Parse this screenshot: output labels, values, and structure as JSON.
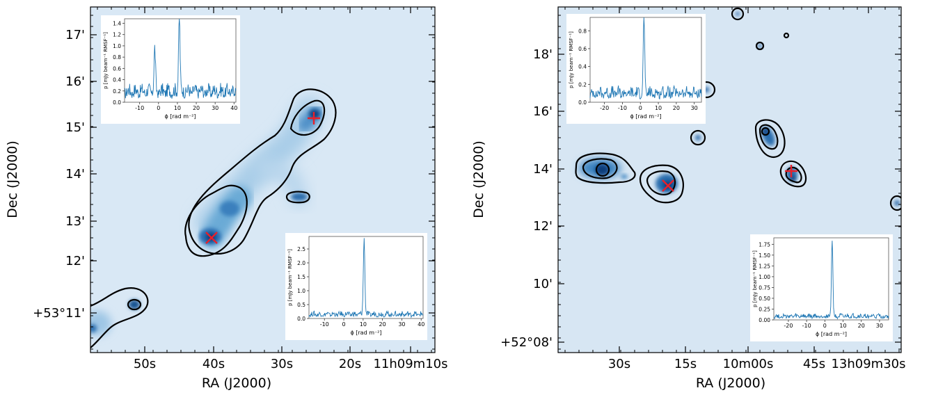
{
  "chart_data": [
    {
      "type": "heatmap",
      "xlabel": "RA (J2000)",
      "ylabel": "Dec (J2000)",
      "x_ticks": [
        "50s",
        "40s",
        "30s",
        "20s",
        "11h09m10s"
      ],
      "y_ticks": [
        "+53°11'",
        "12'",
        "13'",
        "14'",
        "15'",
        "16'",
        "17'"
      ],
      "colormap": "Blues",
      "contour_color": "#000000",
      "markers": [
        {
          "shape": "plus",
          "color": "#e8202a"
        },
        {
          "shape": "cross",
          "color": "#e8202a"
        }
      ],
      "insets": [
        {
          "position": "top-left",
          "type": "line",
          "xlabel": "ϕ [rad m⁻²]",
          "ylabel": "p [mJy beam⁻¹ RMSF⁻¹]",
          "x_ticks": [
            -10,
            0,
            10,
            20,
            30,
            40
          ],
          "y_ticks": [
            0.0,
            0.2,
            0.4,
            0.6,
            0.8,
            1.0,
            1.2,
            1.4
          ],
          "xlim": [
            -18,
            41
          ],
          "ylim": [
            0,
            1.48
          ],
          "peaks": [
            {
              "x": -2,
              "y": 0.75
            },
            {
              "x": 11,
              "y": 1.38
            }
          ],
          "baseline": 0.28,
          "color": "#1f77b4"
        },
        {
          "position": "bottom-right",
          "type": "line",
          "xlabel": "ϕ [rad m⁻²]",
          "ylabel": "p [mJy beam⁻¹ RMSF⁻¹]",
          "x_ticks": [
            -10,
            0,
            10,
            20,
            30,
            40
          ],
          "y_ticks": [
            0.0,
            0.5,
            1.0,
            1.5,
            2.0,
            2.5
          ],
          "xlim": [
            -18,
            41
          ],
          "ylim": [
            0,
            2.95
          ],
          "peaks": [
            {
              "x": 10.5,
              "y": 2.75
            }
          ],
          "baseline": 0.22,
          "color": "#1f77b4"
        }
      ]
    },
    {
      "type": "heatmap",
      "xlabel": "RA (J2000)",
      "ylabel": "Dec (J2000)",
      "x_ticks": [
        "30s",
        "15s",
        "10m00s",
        "45s",
        "13h09m30s"
      ],
      "y_ticks": [
        "+52°08'",
        "10'",
        "12'",
        "14'",
        "16'",
        "18'"
      ],
      "colormap": "Blues",
      "contour_color": "#000000",
      "markers": [
        {
          "shape": "cross",
          "color": "#e8202a"
        },
        {
          "shape": "plus",
          "color": "#e8202a"
        }
      ],
      "insets": [
        {
          "position": "top-left",
          "type": "line",
          "xlabel": "ϕ [rad m⁻²]",
          "ylabel": "p [mJy beam⁻¹ RMSF⁻¹]",
          "x_ticks": [
            -20,
            -10,
            0,
            10,
            20,
            30
          ],
          "y_ticks": [
            0.0,
            0.2,
            0.4,
            0.6,
            0.8
          ],
          "xlim": [
            -28,
            34
          ],
          "ylim": [
            0,
            0.95
          ],
          "peaks": [
            {
              "x": 2,
              "y": 0.88
            }
          ],
          "baseline": 0.15,
          "color": "#1f77b4"
        },
        {
          "position": "bottom-right",
          "type": "line",
          "xlabel": "ϕ [rad m⁻²]",
          "ylabel": "p [mJy beam⁻¹ RMSF⁻¹]",
          "x_ticks": [
            -20,
            -10,
            0,
            10,
            20,
            30
          ],
          "y_ticks": [
            0.0,
            0.25,
            0.5,
            0.75,
            1.0,
            1.25,
            1.5,
            1.75
          ],
          "y_tick_labels": [
            "0.00",
            "0.25",
            "0.50",
            "0.75",
            "1.00",
            "1.25",
            "1.50",
            "1.75"
          ],
          "xlim": [
            -28,
            35
          ],
          "ylim": [
            0,
            1.9
          ],
          "peaks": [
            {
              "x": 4,
              "y": 1.8
            }
          ],
          "baseline": 0.12,
          "color": "#1f77b4"
        }
      ]
    }
  ]
}
